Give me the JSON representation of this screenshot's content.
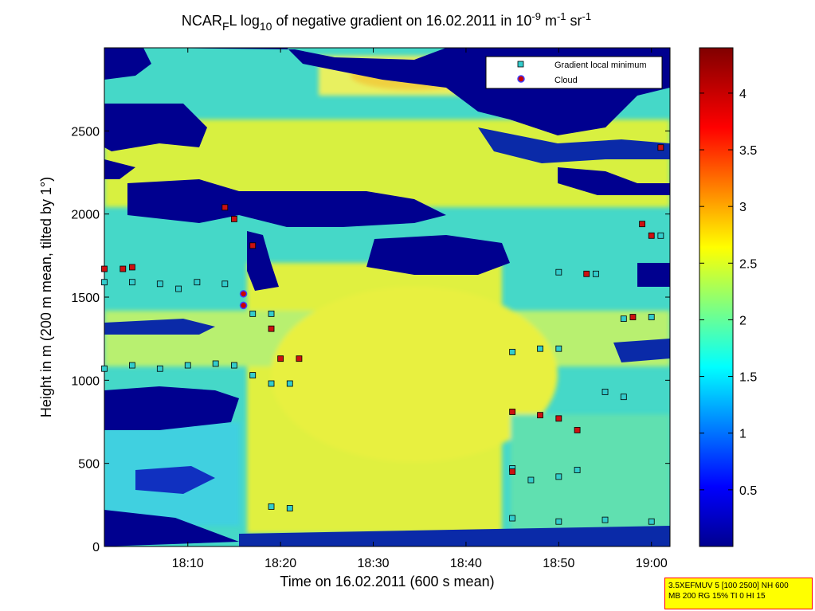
{
  "chart_data": {
    "type": "heatmap",
    "title": {
      "prefix": "NCAR",
      "sub": "F",
      "part2": "L log",
      "sub2": "10",
      "part3": " of negative gradient on 16.02.2011 in 10",
      "sup1": "-9",
      "part4": " m",
      "sup2": "-1",
      "part5": " sr",
      "sup3": "-1"
    },
    "xlabel": "Time on 16.02.2011 (600 s mean)",
    "ylabel": "Height in m (200 m mean, tilted by 1°)",
    "xlim": [
      "18:01",
      "19:02"
    ],
    "ylim": [
      0,
      3000
    ],
    "x_ticks": [
      "18:10",
      "18:20",
      "18:30",
      "18:40",
      "18:50",
      "19:00"
    ],
    "y_ticks": [
      0,
      500,
      1000,
      1500,
      2000,
      2500
    ],
    "colorbar": {
      "range": [
        0,
        4.4
      ],
      "ticks": [
        "0.5",
        "1",
        "1.5",
        "2",
        "2.5",
        "3",
        "3.5",
        "4"
      ]
    },
    "legend": {
      "placement": "top-right",
      "entries": [
        {
          "label": "Gradient local minimum",
          "marker": "square",
          "color": "#33cccc"
        },
        {
          "label": "Cloud",
          "marker": "circle",
          "color": "#cc0000"
        }
      ]
    },
    "series": [
      {
        "name": "Gradient local minimum",
        "points": [
          [
            "18:01",
            1590
          ],
          [
            "18:04",
            1590
          ],
          [
            "18:07",
            1580
          ],
          [
            "18:09",
            1550
          ],
          [
            "18:11",
            1590
          ],
          [
            "18:14",
            1580
          ],
          [
            "18:01",
            1070
          ],
          [
            "18:04",
            1090
          ],
          [
            "18:07",
            1070
          ],
          [
            "18:10",
            1090
          ],
          [
            "18:13",
            1100
          ],
          [
            "18:15",
            1090
          ],
          [
            "18:17",
            1400
          ],
          [
            "18:19",
            1400
          ],
          [
            "18:17",
            1030
          ],
          [
            "18:19",
            980
          ],
          [
            "18:21",
            980
          ],
          [
            "18:19",
            240
          ],
          [
            "18:21",
            230
          ],
          [
            "18:45",
            1170
          ],
          [
            "18:48",
            1190
          ],
          [
            "18:50",
            1190
          ],
          [
            "18:45",
            470
          ],
          [
            "18:47",
            400
          ],
          [
            "18:50",
            420
          ],
          [
            "18:52",
            460
          ],
          [
            "18:45",
            170
          ],
          [
            "18:50",
            150
          ],
          [
            "18:55",
            160
          ],
          [
            "19:00",
            150
          ],
          [
            "18:55",
            930
          ],
          [
            "18:57",
            900
          ],
          [
            "18:50",
            1650
          ],
          [
            "18:54",
            1640
          ],
          [
            "18:57",
            1370
          ],
          [
            "19:00",
            1380
          ],
          [
            "19:01",
            1870
          ]
        ]
      },
      {
        "name": "Cloud",
        "points": [
          [
            "18:16",
            1520
          ],
          [
            "18:16",
            1450
          ]
        ]
      },
      {
        "name": "",
        "points": [
          [
            "18:01",
            1670
          ],
          [
            "18:03",
            1670
          ],
          [
            "18:04",
            1680
          ],
          [
            "18:14",
            2040
          ],
          [
            "18:15",
            1970
          ],
          [
            "18:17",
            1810
          ],
          [
            "18:19",
            1310
          ],
          [
            "18:20",
            1130
          ],
          [
            "18:22",
            1130
          ],
          [
            "18:45",
            810
          ],
          [
            "18:48",
            790
          ],
          [
            "18:50",
            770
          ],
          [
            "18:52",
            700
          ],
          [
            "18:45",
            450
          ],
          [
            "18:53",
            1640
          ],
          [
            "18:58",
            1380
          ],
          [
            "18:59",
            1940
          ],
          [
            "19:00",
            1870
          ],
          [
            "19:01",
            2400
          ]
        ]
      }
    ]
  },
  "infobox": {
    "line1": "3.5XEFMUV 5 [100 2500] NH 600",
    "line2": "MB 200 RG 15% TI 0 HI 15"
  }
}
